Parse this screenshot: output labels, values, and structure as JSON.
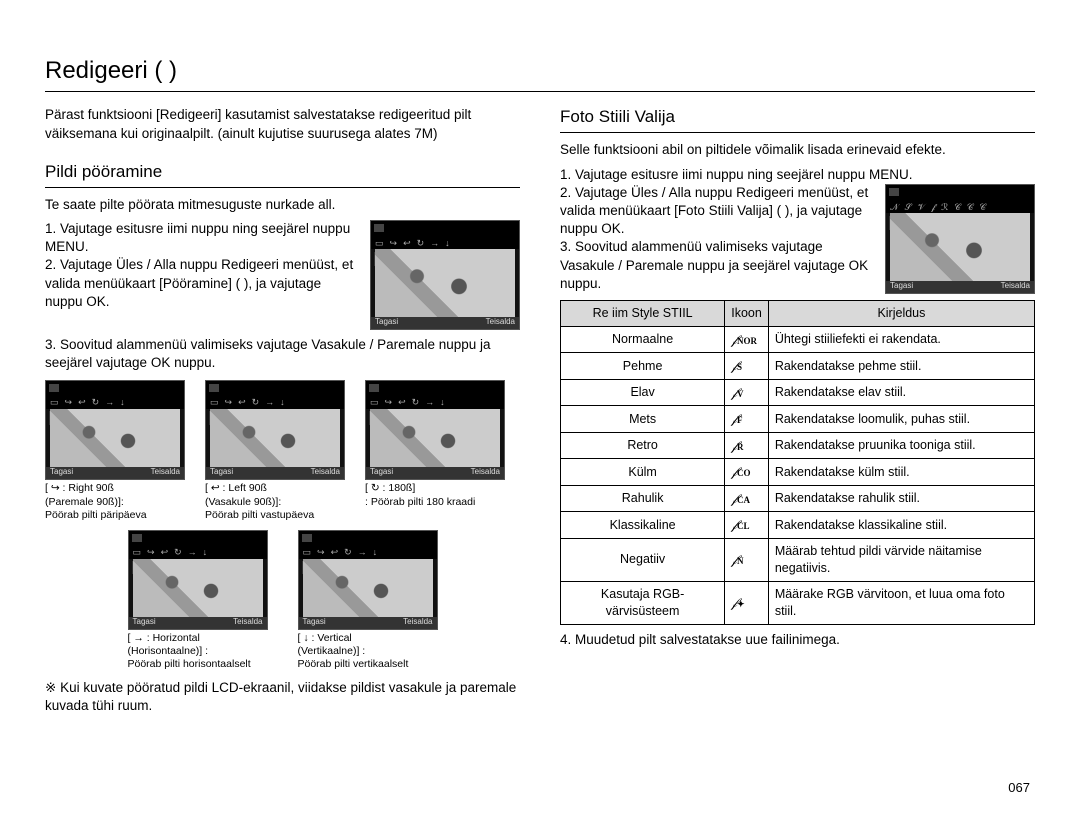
{
  "page": {
    "title": "Redigeeri (    )",
    "intro": "Pärast funktsiooni [Redigeeri] kasutamist salvestatakse redigeeritud pilt väiksemana kui originaalpilt. (ainult kujutise suurusega alates 7M)",
    "page_number": "067"
  },
  "rotate": {
    "heading": "Pildi pööramine",
    "intro": "Te saate pilte pöörata mitmesuguste nurkade all.",
    "steps": [
      "1. Vajutage esitusre iimi nuppu ning seejärel nuppu MENU.",
      "2. Vajutage Üles / Alla nuppu Redigeeri menüüst, et valida menüükaart [Pööramine] (      ), ja vajutage nuppu OK.",
      "3. Soovitud alammenüü valimiseks vajutage Vasakule / Paremale nuppu ja seejärel vajutage OK nuppu."
    ],
    "thumb_main": {
      "label": "Pööramine",
      "foot_left": "Tagasi",
      "foot_right": "Teisalda"
    },
    "thumbs_row1": [
      {
        "label": "Paremale 90ß",
        "cap1": "[ ↪ : Right 90ß",
        "cap2": "(Paremale 90ß)]:",
        "cap3": "Pöörab pilti päripäeva",
        "foot_left": "Tagasi",
        "foot_right": "Teisalda"
      },
      {
        "label": "Vasakule 90ß",
        "cap1": "[ ↩ : Left 90ß",
        "cap2": "(Vasakule 90ß)]:",
        "cap3": "Pöörab pilti vastupäeva",
        "foot_left": "Tagasi",
        "foot_right": "Teisalda"
      },
      {
        "label": "180ß",
        "cap1": "[ ↻ : 180ß]",
        "cap2": ": Pöörab pilti 180 kraadi",
        "cap3": "",
        "foot_left": "Tagasi",
        "foot_right": "Teisalda"
      }
    ],
    "thumbs_row2": [
      {
        "label": "Horisontaalne",
        "cap1": "[ → : Horizontal",
        "cap2": "(Horisontaalne)] :",
        "cap3": "Pöörab pilti horisontaalselt",
        "foot_left": "Tagasi",
        "foot_right": "Teisalda"
      },
      {
        "label": "Vertikaalne",
        "cap1": "[ ↓ : Vertical",
        "cap2": "(Vertikaalne)] :",
        "cap3": "Pöörab pilti vertikaalselt",
        "foot_left": "Tagasi",
        "foot_right": "Teisalda"
      }
    ],
    "note": "Kui kuvate pööratud pildi LCD-ekraanil, viidakse pildist vasakule ja paremale kuvada tühi ruum."
  },
  "style": {
    "heading": "Foto Stiili Valija",
    "intro": "Selle funktsiooni abil on piltidele võimalik lisada erinevaid efekte.",
    "steps_a": [
      "1. Vajutage esitusre iimi nuppu ning seejärel nuppu MENU."
    ],
    "steps_b": "2. Vajutage Üles / Alla nuppu Redigeeri menüüst, et valida menüükaart [Foto Stiili Valija] (      ), ja vajutage nuppu OK.",
    "steps_c": "3. Soovitud alammenüü valimiseks vajutage Vasakule / Paremale nuppu ja seejärel vajutage OK nuppu.",
    "thumb": {
      "label": "Foto Stiili Valija",
      "foot_left": "Tagasi",
      "foot_right": "Teisalda"
    },
    "table": {
      "headers": [
        "Re iim Style STIIL",
        "Ikoon",
        "Kirjeldus"
      ],
      "rows": [
        {
          "name": "Normaalne",
          "icon": "NOR",
          "desc": "Ühtegi stiiliefekti ei rakendata."
        },
        {
          "name": "Pehme",
          "icon": "S",
          "desc": "Rakendatakse pehme stiil."
        },
        {
          "name": "Elav",
          "icon": "V",
          "desc": "Rakendatakse elav stiil."
        },
        {
          "name": "Mets",
          "icon": "F",
          "desc": "Rakendatakse loomulik, puhas stiil."
        },
        {
          "name": "Retro",
          "icon": "R",
          "desc": "Rakendatakse pruunika tooniga stiil."
        },
        {
          "name": "Külm",
          "icon": "CO",
          "desc": "Rakendatakse külm stiil."
        },
        {
          "name": "Rahulik",
          "icon": "CA",
          "desc": "Rakendatakse rahulik stiil."
        },
        {
          "name": "Klassikaline",
          "icon": "CL",
          "desc": "Rakendatakse klassikaline stiil."
        },
        {
          "name": "Negatiiv",
          "icon": "N",
          "desc": "Määrab tehtud pildi värvide näitamise negatiivis."
        },
        {
          "name": "Kasutaja RGB-värvisüsteem",
          "icon": "✦",
          "desc": "Määrake RGB värvitoon, et luua oma foto stiil."
        }
      ]
    },
    "after": "4. Muudetud pilt salvestatakse uue failinimega."
  }
}
